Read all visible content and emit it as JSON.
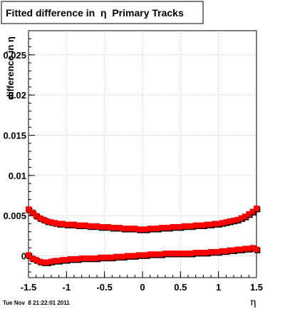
{
  "chart_data": {
    "type": "scatter",
    "title": "Fitted difference in  η  Primary Tracks",
    "xlabel": "η",
    "ylabel": "difference in η",
    "xlim": [
      -1.5,
      1.5
    ],
    "ylim": [
      -0.0027,
      0.028
    ],
    "x_ticks": [
      -1.5,
      -1,
      -0.5,
      0,
      0.5,
      1,
      1.5
    ],
    "x_tick_labels": [
      "-1.5",
      "-1",
      "-0.5",
      "0",
      "0.5",
      "1",
      "1.5"
    ],
    "y_ticks": [
      0,
      0.005,
      0.01,
      0.015,
      0.02,
      0.025
    ],
    "y_tick_labels": [
      "0",
      "0.005",
      "0.01",
      "0.015",
      "0.02",
      "0.025"
    ],
    "grid": true,
    "marker_color": "#ff0000",
    "shadow_color": "#000000",
    "timestamp": "Tue Nov  8 21:22:01 2011",
    "series": [
      {
        "x": [
          -1.5,
          -1.45,
          -1.4,
          -1.35,
          -1.3,
          -1.25,
          -1.2,
          -1.15,
          -1.1,
          -1.05,
          -1.0,
          -0.95,
          -0.9,
          -0.85,
          -0.8,
          -0.75,
          -0.7,
          -0.65,
          -0.6,
          -0.55,
          -0.5,
          -0.45,
          -0.4,
          -0.35,
          -0.3,
          -0.25,
          -0.2,
          -0.15,
          -0.1,
          -0.05,
          0.0,
          0.05,
          0.1,
          0.15,
          0.2,
          0.25,
          0.3,
          0.35,
          0.4,
          0.45,
          0.5,
          0.55,
          0.6,
          0.65,
          0.7,
          0.75,
          0.8,
          0.85,
          0.9,
          0.95,
          1.0,
          1.05,
          1.1,
          1.15,
          1.2,
          1.25,
          1.3,
          1.35,
          1.4,
          1.45,
          1.5
        ],
        "y": [
          0.0058,
          0.0054,
          0.005,
          0.0047,
          0.0045,
          0.0043,
          0.0042,
          0.0041,
          0.004,
          0.004,
          0.0039,
          0.0039,
          0.0039,
          0.0038,
          0.0038,
          0.0038,
          0.0037,
          0.0037,
          0.0037,
          0.0036,
          0.0036,
          0.0036,
          0.0035,
          0.0035,
          0.0035,
          0.0034,
          0.0034,
          0.0034,
          0.0034,
          0.0033,
          0.0033,
          0.0033,
          0.0034,
          0.0034,
          0.0034,
          0.0035,
          0.0035,
          0.0035,
          0.0036,
          0.0036,
          0.0036,
          0.0037,
          0.0037,
          0.0037,
          0.0038,
          0.0038,
          0.0038,
          0.0039,
          0.0039,
          0.004,
          0.004,
          0.0041,
          0.0042,
          0.0043,
          0.0044,
          0.0045,
          0.0047,
          0.0049,
          0.0052,
          0.0055,
          0.0059
        ]
      },
      {
        "x": [
          -1.5,
          -1.45,
          -1.4,
          -1.35,
          -1.3,
          -1.25,
          -1.2,
          -1.15,
          -1.1,
          -1.05,
          -1.0,
          -0.95,
          -0.9,
          -0.85,
          -0.8,
          -0.75,
          -0.7,
          -0.65,
          -0.6,
          -0.55,
          -0.5,
          -0.45,
          -0.4,
          -0.35,
          -0.3,
          -0.25,
          -0.2,
          -0.15,
          -0.1,
          -0.05,
          0.0,
          0.05,
          0.1,
          0.15,
          0.2,
          0.25,
          0.3,
          0.35,
          0.4,
          0.45,
          0.5,
          0.55,
          0.6,
          0.65,
          0.7,
          0.75,
          0.8,
          0.85,
          0.9,
          0.95,
          1.0,
          1.05,
          1.1,
          1.15,
          1.2,
          1.25,
          1.3,
          1.35,
          1.4,
          1.45,
          1.5
        ],
        "y": [
          0.0001,
          -0.0003,
          -0.0005,
          -0.0007,
          -0.0008,
          -0.0008,
          -0.0007,
          -0.0006,
          -0.0006,
          -0.0005,
          -0.0005,
          -0.0004,
          -0.0004,
          -0.0004,
          -0.0003,
          -0.0003,
          -0.0003,
          -0.0003,
          -0.0003,
          -0.0002,
          -0.0002,
          -0.0002,
          -0.0002,
          -0.0001,
          -0.0001,
          -0.0001,
          0.0,
          0.0,
          0.0,
          0.0001,
          0.0001,
          0.0001,
          0.0002,
          0.0002,
          0.0002,
          0.0002,
          0.0003,
          0.0003,
          0.0003,
          0.0003,
          0.0003,
          0.0003,
          0.0003,
          0.0003,
          0.0004,
          0.0004,
          0.0004,
          0.0004,
          0.0005,
          0.0005,
          0.0005,
          0.0006,
          0.0006,
          0.0007,
          0.0007,
          0.0008,
          0.0008,
          0.0009,
          0.0009,
          0.001,
          0.0008
        ]
      }
    ]
  }
}
